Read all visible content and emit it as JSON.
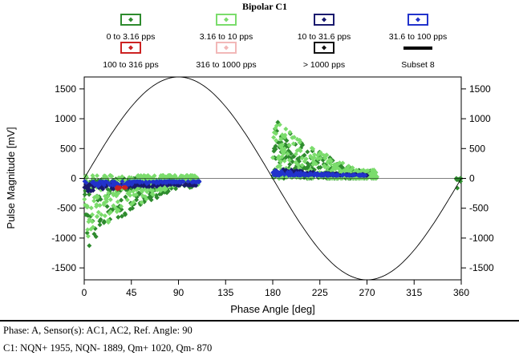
{
  "chart_data": {
    "type": "scatter",
    "title": "Bipolar C1",
    "xlabel": "Phase Angle [deg]",
    "ylabel": "Pulse Magnitude [mV]",
    "xlim": [
      0,
      360
    ],
    "ylim": [
      -1700,
      1700
    ],
    "x_ticks": [
      0,
      45,
      90,
      135,
      180,
      225,
      270,
      315,
      360
    ],
    "y_ticks": [
      1500,
      1000,
      500,
      0,
      -500,
      -1000,
      -1500
    ],
    "grid": false,
    "legend_position": "top",
    "legend": [
      {
        "label": "0 to 3.16 pps",
        "color": "#2e8b2e",
        "marker": "diamond"
      },
      {
        "label": "3.16 to 10 pps",
        "color": "#7bdc6c",
        "marker": "diamond"
      },
      {
        "label": "10 to 31.6 pps",
        "color": "#1a1a6e",
        "marker": "diamond"
      },
      {
        "label": "31.6 to 100 pps",
        "color": "#2233cc",
        "marker": "diamond"
      },
      {
        "label": "100 to 316 pps",
        "color": "#cc2222",
        "marker": "diamond"
      },
      {
        "label": "316 to 1000 pps",
        "color": "#f2b8b8",
        "marker": "diamond"
      },
      {
        "label": "> 1000 pps",
        "color": "#111111",
        "marker": "diamond"
      },
      {
        "label": "Subset 8",
        "color": "#000000",
        "marker": "line"
      }
    ],
    "reference_sine": {
      "amplitude_mv": 1700,
      "phase_offset_deg": 0,
      "color": "#000000"
    },
    "clusters": [
      {
        "series": "0 to 3.16 pps",
        "x_range": [
          0,
          110
        ],
        "y_range": [
          -1350,
          0
        ],
        "density": "high"
      },
      {
        "series": "3.16 to 10 pps",
        "x_range": [
          0,
          110
        ],
        "y_range": [
          -1300,
          50
        ],
        "density": "high"
      },
      {
        "series": "10 to 31.6 pps",
        "x_range": [
          0,
          110
        ],
        "y_range": [
          -250,
          -100
        ],
        "density": "medium"
      },
      {
        "series": "31.6 to 100 pps",
        "x_range": [
          0,
          110
        ],
        "y_range": [
          -200,
          -50
        ],
        "density": "medium"
      },
      {
        "series": "100 to 316 pps",
        "x_range": [
          30,
          40
        ],
        "y_range": [
          -200,
          -150
        ],
        "density": "low"
      },
      {
        "series": "0 to 3.16 pps",
        "x_range": [
          180,
          280
        ],
        "y_range": [
          0,
          1150
        ],
        "density": "high"
      },
      {
        "series": "3.16 to 10 pps",
        "x_range": [
          180,
          280
        ],
        "y_range": [
          0,
          1200
        ],
        "density": "high"
      },
      {
        "series": "10 to 31.6 pps",
        "x_range": [
          180,
          270
        ],
        "y_range": [
          50,
          200
        ],
        "density": "medium"
      },
      {
        "series": "31.6 to 100 pps",
        "x_range": [
          180,
          270
        ],
        "y_range": [
          50,
          150
        ],
        "density": "medium"
      },
      {
        "series": "0 to 3.16 pps",
        "x_range": [
          355,
          360
        ],
        "y_range": [
          -400,
          0
        ],
        "density": "low"
      }
    ]
  },
  "footer": {
    "line_1": "Phase: A, Sensor(s): AC1,  AC2, Ref. Angle: 90",
    "line_2": "C1:   NQN+ 1955, NQN- 1889, Qm+ 1020, Qm- 870"
  }
}
